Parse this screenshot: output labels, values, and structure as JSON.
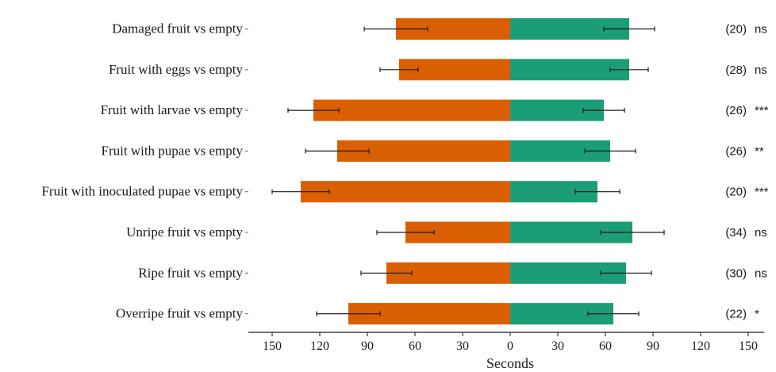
{
  "chart_data": {
    "type": "bar",
    "orientation": "horizontal",
    "xlabel": "Seconds",
    "xlim": [
      -150,
      150
    ],
    "xticks": [
      -150,
      -120,
      -90,
      -60,
      -30,
      0,
      30,
      60,
      90,
      120,
      150
    ],
    "xtick_labels": [
      "150",
      "120",
      "90",
      "60",
      "30",
      "0",
      "30",
      "60",
      "90",
      "120",
      "150"
    ],
    "categories": [
      "Damaged fruit vs empty",
      "Fruit with eggs vs empty",
      "Fruit with larvae vs empty",
      "Fruit with pupae vs empty",
      "Fruit with inoculated pupae vs empty",
      "Unripe fruit vs empty",
      "Ripe fruit vs empty",
      "Overripe fruit vs empty"
    ],
    "series": [
      {
        "color": "#d95f02",
        "side": "left",
        "values": [
          72,
          70,
          124,
          109,
          132,
          66,
          78,
          102
        ],
        "errors": [
          20,
          12,
          16,
          20,
          18,
          18,
          16,
          20
        ]
      },
      {
        "color": "#1b9e77",
        "side": "right",
        "values": [
          75,
          75,
          59,
          63,
          55,
          77,
          73,
          65
        ],
        "errors": [
          16,
          12,
          13,
          16,
          14,
          20,
          16,
          16
        ]
      }
    ],
    "n_labels": [
      "(20)",
      "(28)",
      "(26)",
      "(26)",
      "(20)",
      "(34)",
      "(30)",
      "(22)"
    ],
    "significance": [
      "ns",
      "ns",
      "***",
      "**",
      "***",
      "ns",
      "ns",
      "*"
    ],
    "grid": false,
    "legend": "none"
  }
}
